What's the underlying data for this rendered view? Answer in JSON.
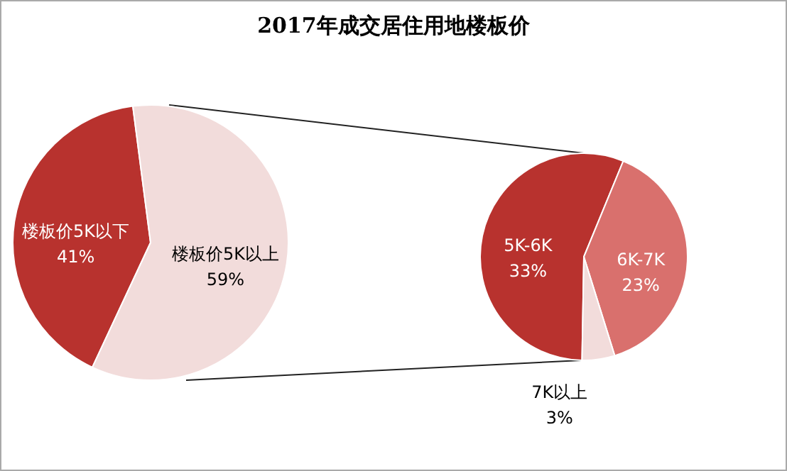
{
  "chart_data": [
    {
      "type": "pie",
      "title": "2017年成交居住用地楼板价",
      "categories": [
        "楼板价5K以下",
        "楼板价5K以上"
      ],
      "values": [
        41,
        59
      ],
      "colors": [
        "#b8322e",
        "#f2dcdb"
      ],
      "value_labels": [
        "41%",
        "59%"
      ],
      "legend": false
    },
    {
      "type": "pie",
      "categories": [
        "5K-6K",
        "6K-7K",
        "7K以上"
      ],
      "values": [
        33,
        23,
        3
      ],
      "colors": [
        "#b8322e",
        "#d9706d",
        "#f2dcdb"
      ],
      "value_labels": [
        "33%",
        "23%",
        "3%"
      ],
      "legend": false
    }
  ]
}
